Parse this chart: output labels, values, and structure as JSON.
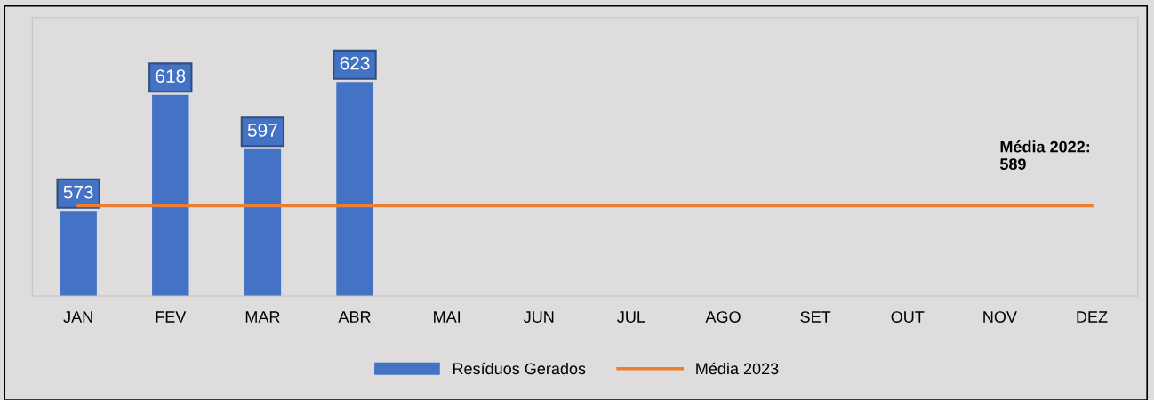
{
  "chart_data": {
    "type": "bar",
    "categories": [
      "JAN",
      "FEV",
      "MAR",
      "ABR",
      "MAI",
      "JUN",
      "JUL",
      "AGO",
      "SET",
      "OUT",
      "NOV",
      "DEZ"
    ],
    "series": [
      {
        "name": "Resíduos Gerados",
        "color": "#4472c4",
        "values": [
          573,
          618,
          597,
          623,
          null,
          null,
          null,
          null,
          null,
          null,
          null,
          null
        ],
        "value_labels": [
          "573",
          "618",
          "597",
          "623",
          null,
          null,
          null,
          null,
          null,
          null,
          null,
          null
        ]
      },
      {
        "name": "Média 2023",
        "type": "line",
        "color": "#ed7d31",
        "values": [
          575,
          575,
          575,
          575,
          575,
          575,
          575,
          575,
          575,
          575,
          575,
          575
        ]
      }
    ],
    "ylim": [
      540,
      648
    ],
    "tick_labels": "x",
    "grid": false,
    "legend": "bottom",
    "annotations": [
      "Média 2022:\n589"
    ]
  }
}
